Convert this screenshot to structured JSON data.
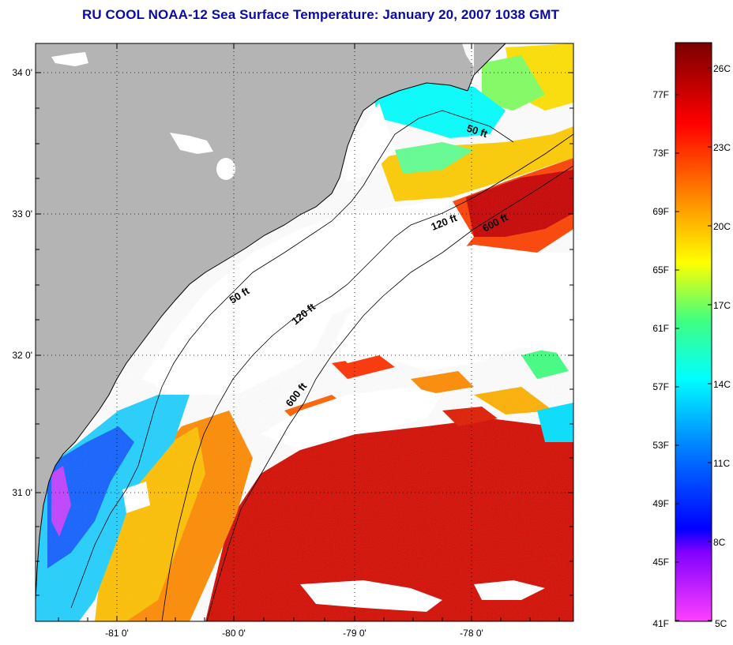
{
  "title": "RU COOL  NOAA-12  Sea Surface Temperature:  January 20, 2007 1038 GMT",
  "map": {
    "lat_labels": [
      "34 0'",
      "33 0'",
      "32 0'",
      "31 0'"
    ],
    "lon_labels": [
      "-81 0'",
      "-80 0'",
      "-79 0'",
      "-78 0'"
    ],
    "contour_labels": [
      "50 ft",
      "120 ft",
      "600 ft",
      "50 ft",
      "120 ft",
      "600 ft"
    ]
  },
  "colorbar": {
    "fahrenheit_labels": [
      "77F",
      "73F",
      "69F",
      "65F",
      "61F",
      "57F",
      "53F",
      "49F",
      "45F",
      "41F"
    ],
    "celsius_labels": [
      "26C",
      "23C",
      "20C",
      "17C",
      "14C",
      "11C",
      "8C",
      "5C"
    ],
    "colors": {
      "max": "#7a0000",
      "red": "#d80000",
      "orange": "#ff8000",
      "yellow": "#ffff00",
      "cyan": "#00ffff",
      "blue": "#0000ff",
      "min": "#ff40ff"
    }
  },
  "legend_colors": {
    "land": "#b4b4b4",
    "cloud": "#ffffff"
  }
}
